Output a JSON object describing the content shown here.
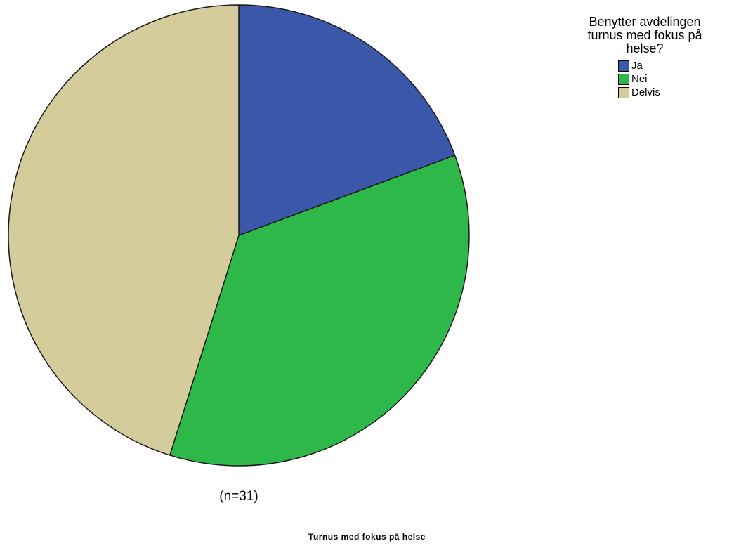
{
  "chart_data": {
    "type": "pie",
    "categories": [
      "Ja",
      "Nei",
      "Delvis"
    ],
    "values": [
      6,
      11,
      14
    ],
    "colors": [
      "#3b57aa",
      "#2fb84a",
      "#d4cd9b"
    ],
    "legend_title": "Benytter avdelingen\nturnus med fokus på\nhelse?",
    "legend_position": "top-right",
    "n_label": "(n=31)",
    "footer_title": "Turnus med fokus på helse",
    "start_angle": "12 o'clock",
    "direction": "clockwise"
  }
}
